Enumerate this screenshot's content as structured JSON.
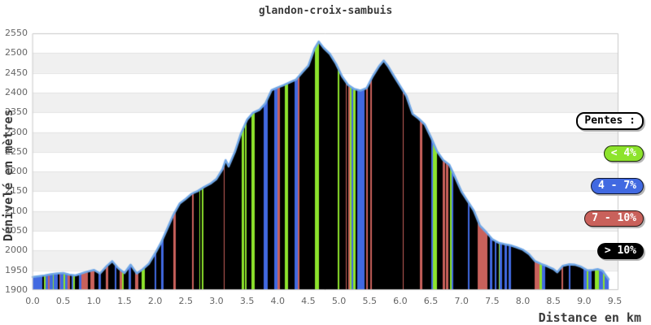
{
  "title": "glandon-croix-sambuis",
  "x_axis": {
    "label": "Distance en km",
    "ticks": [
      "0.0",
      "0.5",
      "1.0",
      "1.5",
      "2.0",
      "2.5",
      "3.0",
      "3.5",
      "4.0",
      "4.5",
      "5.0",
      "5.5",
      "6.0",
      "6.5",
      "7.0",
      "7.5",
      "8.0",
      "8.5",
      "9.0",
      "9.5"
    ]
  },
  "y_axis": {
    "label": "Dénivelé en mètres",
    "ticks": [
      "2550",
      "2500",
      "2450",
      "2400",
      "2350",
      "2300",
      "2250",
      "2200",
      "2150",
      "2100",
      "2050",
      "2000",
      "1950",
      "1900"
    ]
  },
  "legend": {
    "title": "Pentes :",
    "items": [
      {
        "label": "< 4%",
        "color": "#8DE32C",
        "category": "g"
      },
      {
        "label": "4 - 7%",
        "color": "#4169E1",
        "category": "b"
      },
      {
        "label": "7 - 10%",
        "color": "#C9615B",
        "category": "r"
      },
      {
        "label": "> 10%",
        "color": "#000000",
        "category": "k"
      }
    ]
  },
  "chart_data": {
    "type": "area",
    "title": "glandon-croix-sambuis",
    "xlabel": "Distance en km",
    "ylabel": "Dénivelé en mètres",
    "xlim": [
      0,
      9.56
    ],
    "ylim": [
      1900,
      2550
    ],
    "x_unit": "km",
    "y_unit": "m",
    "grid": true,
    "legend_position": "right",
    "line_color": "#6FA6E6",
    "plot_border_color": "#C9C9C9",
    "gridline_color": "#E3E3E3",
    "band_colors": {
      "light": "#FFFFFF",
      "dark": "#F0F0F0"
    },
    "slope_colors": {
      "g": "#8DE32C",
      "b": "#4169E1",
      "r": "#C9615B",
      "k": "#000000"
    },
    "profile_points": [
      [
        0.0,
        1932
      ],
      [
        0.1,
        1934
      ],
      [
        0.2,
        1936
      ],
      [
        0.3,
        1939
      ],
      [
        0.4,
        1941
      ],
      [
        0.5,
        1942
      ],
      [
        0.6,
        1938
      ],
      [
        0.7,
        1936
      ],
      [
        0.8,
        1941
      ],
      [
        0.9,
        1946
      ],
      [
        1.0,
        1950
      ],
      [
        1.1,
        1941
      ],
      [
        1.2,
        1958
      ],
      [
        1.3,
        1972
      ],
      [
        1.4,
        1954
      ],
      [
        1.5,
        1942
      ],
      [
        1.6,
        1963
      ],
      [
        1.7,
        1941
      ],
      [
        1.8,
        1952
      ],
      [
        1.9,
        1966
      ],
      [
        2.0,
        1992
      ],
      [
        2.1,
        2020
      ],
      [
        2.2,
        2055
      ],
      [
        2.3,
        2090
      ],
      [
        2.4,
        2118
      ],
      [
        2.5,
        2130
      ],
      [
        2.6,
        2143
      ],
      [
        2.7,
        2150
      ],
      [
        2.8,
        2160
      ],
      [
        2.9,
        2168
      ],
      [
        3.0,
        2180
      ],
      [
        3.1,
        2205
      ],
      [
        3.15,
        2228
      ],
      [
        3.2,
        2212
      ],
      [
        3.3,
        2248
      ],
      [
        3.4,
        2295
      ],
      [
        3.5,
        2330
      ],
      [
        3.6,
        2348
      ],
      [
        3.7,
        2355
      ],
      [
        3.8,
        2372
      ],
      [
        3.9,
        2405
      ],
      [
        4.0,
        2412
      ],
      [
        4.1,
        2418
      ],
      [
        4.2,
        2425
      ],
      [
        4.3,
        2432
      ],
      [
        4.4,
        2450
      ],
      [
        4.5,
        2467
      ],
      [
        4.6,
        2510
      ],
      [
        4.67,
        2528
      ],
      [
        4.75,
        2512
      ],
      [
        4.85,
        2497
      ],
      [
        4.95,
        2472
      ],
      [
        5.05,
        2440
      ],
      [
        5.15,
        2418
      ],
      [
        5.25,
        2408
      ],
      [
        5.35,
        2404
      ],
      [
        5.45,
        2410
      ],
      [
        5.55,
        2440
      ],
      [
        5.65,
        2465
      ],
      [
        5.73,
        2480
      ],
      [
        5.8,
        2466
      ],
      [
        5.9,
        2440
      ],
      [
        6.0,
        2415
      ],
      [
        6.1,
        2390
      ],
      [
        6.2,
        2345
      ],
      [
        6.3,
        2333
      ],
      [
        6.4,
        2318
      ],
      [
        6.5,
        2286
      ],
      [
        6.6,
        2250
      ],
      [
        6.7,
        2228
      ],
      [
        6.8,
        2216
      ],
      [
        6.9,
        2183
      ],
      [
        7.0,
        2148
      ],
      [
        7.1,
        2124
      ],
      [
        7.2,
        2100
      ],
      [
        7.3,
        2062
      ],
      [
        7.4,
        2046
      ],
      [
        7.5,
        2028
      ],
      [
        7.6,
        2019
      ],
      [
        7.7,
        2015
      ],
      [
        7.8,
        2012
      ],
      [
        7.9,
        2007
      ],
      [
        8.0,
        2001
      ],
      [
        8.1,
        1990
      ],
      [
        8.2,
        1972
      ],
      [
        8.3,
        1965
      ],
      [
        8.4,
        1959
      ],
      [
        8.5,
        1952
      ],
      [
        8.56,
        1944
      ],
      [
        8.65,
        1960
      ],
      [
        8.75,
        1964
      ],
      [
        8.85,
        1963
      ],
      [
        8.95,
        1958
      ],
      [
        9.05,
        1949
      ],
      [
        9.15,
        1950
      ],
      [
        9.22,
        1952
      ],
      [
        9.3,
        1948
      ],
      [
        9.4,
        1926
      ]
    ],
    "slope_segments": [
      [
        0.15,
        "b"
      ],
      [
        0.18,
        "k"
      ],
      [
        0.2,
        "g"
      ],
      [
        0.25,
        "b"
      ],
      [
        0.27,
        "r"
      ],
      [
        0.32,
        "b"
      ],
      [
        0.34,
        "g"
      ],
      [
        0.4,
        "b"
      ],
      [
        0.43,
        "k"
      ],
      [
        0.45,
        "r"
      ],
      [
        0.5,
        "b"
      ],
      [
        0.52,
        "g"
      ],
      [
        0.57,
        "b"
      ],
      [
        0.6,
        "r"
      ],
      [
        0.63,
        "k"
      ],
      [
        0.66,
        "b"
      ],
      [
        0.68,
        "g"
      ],
      [
        0.75,
        "k"
      ],
      [
        0.79,
        "b"
      ],
      [
        0.9,
        "r"
      ],
      [
        0.93,
        "k"
      ],
      [
        1.0,
        "r"
      ],
      [
        1.07,
        "k"
      ],
      [
        1.11,
        "b"
      ],
      [
        1.19,
        "k"
      ],
      [
        1.23,
        "r"
      ],
      [
        1.34,
        "k"
      ],
      [
        1.36,
        "b"
      ],
      [
        1.42,
        "k"
      ],
      [
        1.46,
        "r"
      ],
      [
        1.48,
        "g"
      ],
      [
        1.56,
        "k"
      ],
      [
        1.6,
        "b"
      ],
      [
        1.66,
        "k"
      ],
      [
        1.72,
        "r"
      ],
      [
        1.77,
        "k"
      ],
      [
        1.83,
        "g"
      ],
      [
        1.99,
        "k"
      ],
      [
        2.01,
        "b"
      ],
      [
        2.09,
        "k"
      ],
      [
        2.13,
        "b"
      ],
      [
        2.29,
        "k"
      ],
      [
        2.33,
        "r"
      ],
      [
        2.6,
        "k"
      ],
      [
        2.62,
        "r"
      ],
      [
        2.71,
        "k"
      ],
      [
        2.73,
        "g"
      ],
      [
        2.76,
        "k"
      ],
      [
        2.78,
        "g"
      ],
      [
        3.11,
        "k"
      ],
      [
        3.13,
        "r"
      ],
      [
        3.41,
        "k"
      ],
      [
        3.44,
        "g"
      ],
      [
        3.46,
        "k"
      ],
      [
        3.48,
        "g"
      ],
      [
        3.56,
        "k"
      ],
      [
        3.62,
        "g"
      ],
      [
        3.77,
        "k"
      ],
      [
        3.83,
        "b"
      ],
      [
        3.94,
        "k"
      ],
      [
        3.99,
        "b"
      ],
      [
        4.03,
        "r"
      ],
      [
        4.11,
        "k"
      ],
      [
        4.16,
        "g"
      ],
      [
        4.27,
        "k"
      ],
      [
        4.32,
        "b"
      ],
      [
        4.35,
        "r"
      ],
      [
        4.6,
        "k"
      ],
      [
        4.67,
        "g"
      ],
      [
        4.97,
        "k"
      ],
      [
        5.0,
        "g"
      ],
      [
        5.1,
        "k"
      ],
      [
        5.12,
        "r"
      ],
      [
        5.15,
        "k"
      ],
      [
        5.17,
        "r"
      ],
      [
        5.2,
        "g"
      ],
      [
        5.22,
        "b"
      ],
      [
        5.26,
        "g"
      ],
      [
        5.29,
        "k"
      ],
      [
        5.41,
        "b"
      ],
      [
        5.44,
        "k"
      ],
      [
        5.46,
        "r"
      ],
      [
        5.51,
        "k"
      ],
      [
        5.53,
        "r"
      ],
      [
        6.03,
        "k"
      ],
      [
        6.05,
        "r"
      ],
      [
        6.31,
        "k"
      ],
      [
        6.35,
        "r"
      ],
      [
        6.5,
        "k"
      ],
      [
        6.52,
        "b"
      ],
      [
        6.59,
        "g"
      ],
      [
        6.68,
        "k"
      ],
      [
        6.72,
        "r"
      ],
      [
        6.74,
        "k"
      ],
      [
        6.78,
        "r"
      ],
      [
        6.81,
        "k"
      ],
      [
        6.83,
        "g"
      ],
      [
        6.86,
        "b"
      ],
      [
        7.1,
        "k"
      ],
      [
        7.13,
        "b"
      ],
      [
        7.26,
        "k"
      ],
      [
        7.42,
        "r"
      ],
      [
        7.45,
        "k"
      ],
      [
        7.49,
        "b"
      ],
      [
        7.53,
        "k"
      ],
      [
        7.56,
        "b"
      ],
      [
        7.6,
        "k"
      ],
      [
        7.62,
        "g"
      ],
      [
        7.66,
        "b"
      ],
      [
        7.69,
        "k"
      ],
      [
        7.73,
        "b"
      ],
      [
        7.76,
        "k"
      ],
      [
        7.8,
        "b"
      ],
      [
        8.19,
        "k"
      ],
      [
        8.27,
        "r"
      ],
      [
        8.3,
        "g"
      ],
      [
        8.36,
        "b"
      ],
      [
        8.62,
        "k"
      ],
      [
        8.65,
        "r"
      ],
      [
        8.74,
        "k"
      ],
      [
        8.77,
        "b"
      ],
      [
        8.98,
        "k"
      ],
      [
        9.03,
        "b"
      ],
      [
        9.06,
        "g"
      ],
      [
        9.12,
        "b"
      ],
      [
        9.17,
        "k"
      ],
      [
        9.24,
        "g"
      ],
      [
        9.3,
        "b"
      ],
      [
        9.33,
        "g"
      ],
      [
        9.4,
        "b"
      ]
    ]
  }
}
